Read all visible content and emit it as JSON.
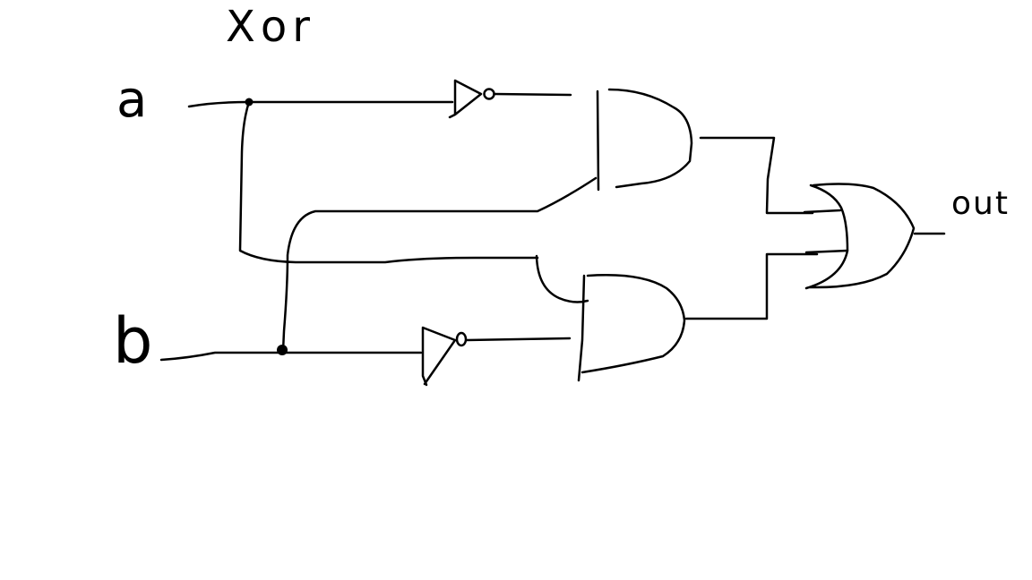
{
  "diagram": {
    "title": "Xor",
    "inputs": [
      {
        "id": "a",
        "label": "a"
      },
      {
        "id": "b",
        "label": "b"
      }
    ],
    "output": {
      "id": "out",
      "label": "out"
    },
    "gates": [
      {
        "id": "not_a",
        "type": "NOT",
        "inputs": [
          "a"
        ]
      },
      {
        "id": "not_b",
        "type": "NOT",
        "inputs": [
          "b"
        ]
      },
      {
        "id": "and_top",
        "type": "AND",
        "inputs": [
          "not_a",
          "b"
        ]
      },
      {
        "id": "and_bottom",
        "type": "AND",
        "inputs": [
          "a",
          "not_b"
        ]
      },
      {
        "id": "or_out",
        "type": "OR",
        "inputs": [
          "and_top",
          "and_bottom"
        ]
      }
    ],
    "stroke_color": "#000000",
    "background_color": "#ffffff"
  }
}
